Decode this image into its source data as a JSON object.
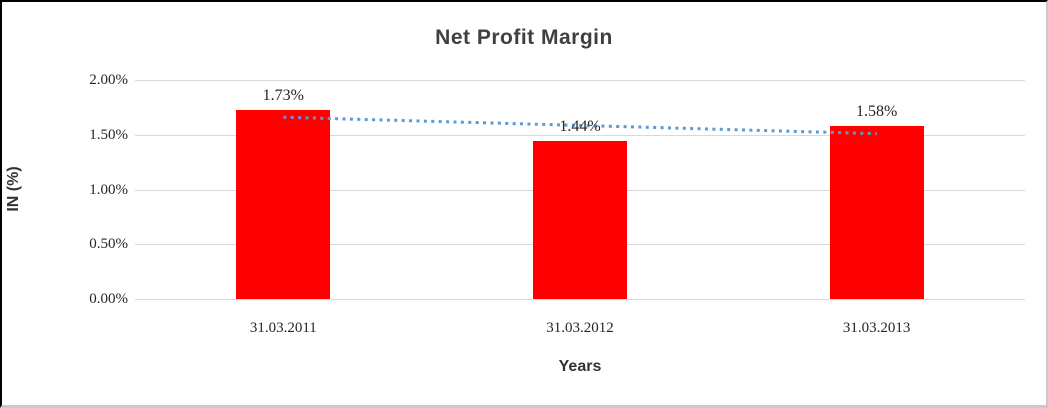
{
  "chart_data": {
    "type": "bar",
    "title": "Net Profit Margin",
    "xlabel": "Years",
    "ylabel": "IN (%)",
    "categories": [
      "31.03.2011",
      "31.03.2012",
      "31.03.2013"
    ],
    "values": [
      1.73,
      1.44,
      1.58
    ],
    "data_labels": [
      "1.73%",
      "1.44%",
      "1.58%"
    ],
    "yticks": [
      {
        "value": 0.0,
        "label": "0.00%"
      },
      {
        "value": 0.5,
        "label": "0.50%"
      },
      {
        "value": 1.0,
        "label": "1.00%"
      },
      {
        "value": 1.5,
        "label": "1.50%"
      },
      {
        "value": 2.0,
        "label": "2.00%"
      }
    ],
    "ylim": [
      0,
      2.0
    ],
    "grid": true,
    "legend": "none",
    "colors": {
      "bar": "#ff0000",
      "trendline": "#5b9bd5",
      "gridline": "#d9d9d9",
      "title_text": "#404040",
      "label_text": "#262626"
    },
    "trendline": {
      "type": "linear",
      "style": "dotted",
      "start_value": 1.66,
      "end_value": 1.51
    }
  }
}
